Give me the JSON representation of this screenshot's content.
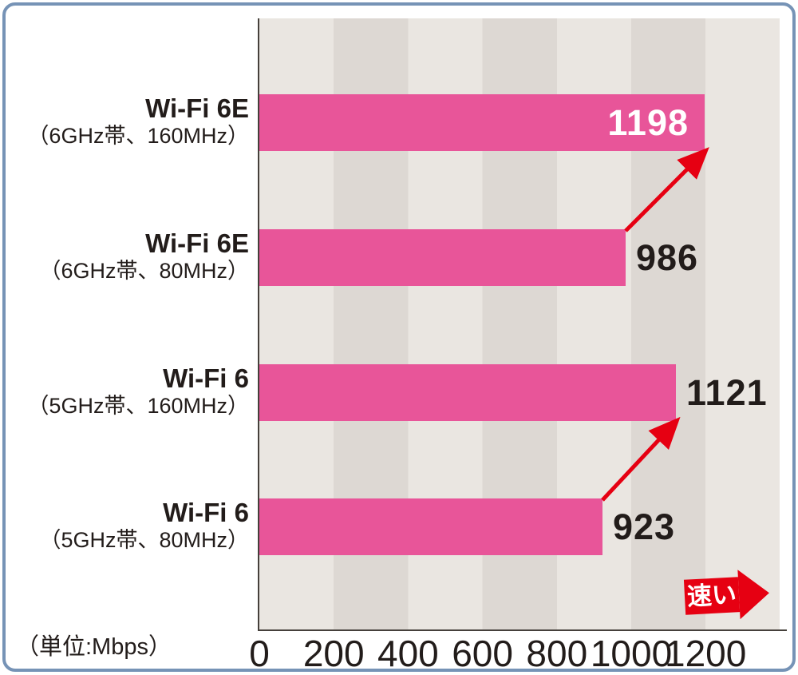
{
  "frame": {
    "border_color": "#7693b6"
  },
  "chart_data": {
    "type": "bar",
    "orientation": "horizontal",
    "title": "",
    "unit_label": "（単位:Mbps）",
    "rows": [
      {
        "label": "Wi-Fi 6E",
        "sublabel": "（6GHz帯、160MHz）",
        "value": 1198,
        "value_inside_bar": true
      },
      {
        "label": "Wi-Fi 6E",
        "sublabel": "（6GHz帯、80MHz）",
        "value": 986,
        "value_inside_bar": false
      },
      {
        "label": "Wi-Fi 6",
        "sublabel": "（5GHz帯、160MHz）",
        "value": 1121,
        "value_inside_bar": false
      },
      {
        "label": "Wi-Fi 6",
        "sublabel": "（5GHz帯、80MHz）",
        "value": 923,
        "value_inside_bar": false
      }
    ],
    "x_ticks": [
      0,
      200,
      400,
      600,
      800,
      1000,
      1200
    ],
    "x_axis": {
      "min": 0,
      "tick_interval": 200,
      "labeled_max": 1200,
      "plot_max": 1398
    },
    "grid": "alternating vertical bands every 200 units",
    "legend": "none",
    "colors": {
      "bar": "#e85599",
      "value_inside": "#ffffff",
      "value_outside": "#221c1a",
      "stripe_light": "#eae6e1",
      "stripe_dark": "#ddd8d3",
      "axis_line": "#45403b",
      "arrow_red": "#e60012",
      "text": "#221c1a"
    },
    "annotations": {
      "improvement_arrows": [
        {
          "from_row": 1,
          "to_row": 0
        },
        {
          "from_row": 3,
          "to_row": 2
        }
      ],
      "direction_arrow_label": "速い"
    }
  }
}
